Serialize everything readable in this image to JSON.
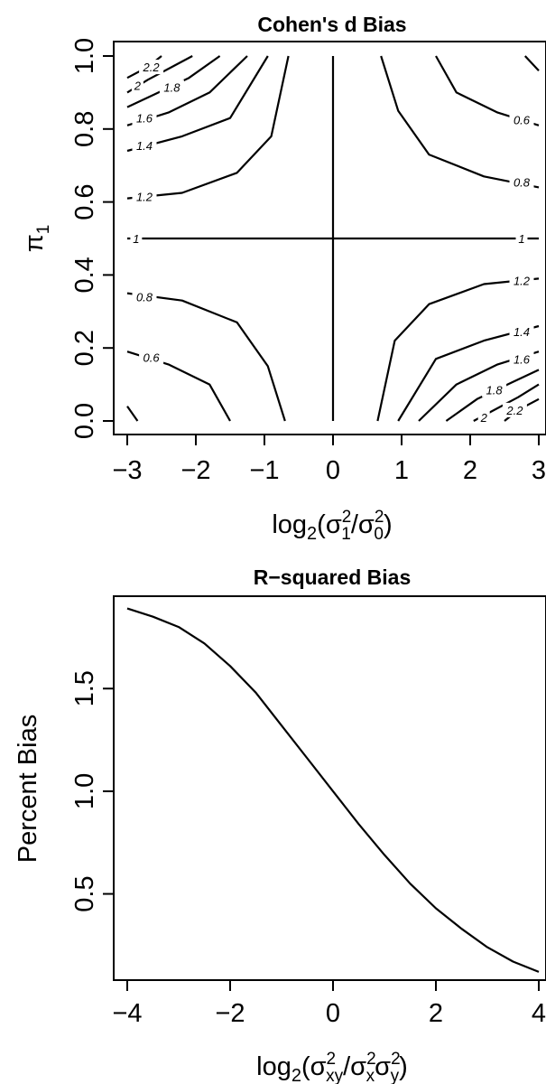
{
  "chart_data": [
    {
      "type": "contour",
      "title": "Cohen's d Bias",
      "ylabel": "π1",
      "xlabel": "log2(σ1²/σ0²)",
      "xlim": [
        -3,
        3
      ],
      "ylim": [
        0,
        1
      ],
      "xticks": [
        -3,
        -2,
        -1,
        0,
        1,
        2,
        3
      ],
      "yticks": [
        0.0,
        0.2,
        0.4,
        0.6,
        0.8,
        1.0
      ],
      "tick_labels_x": [
        "−3",
        "−2",
        "−1",
        "0",
        "1",
        "2",
        "3"
      ],
      "tick_labels_y": [
        "0.0",
        "0.2",
        "0.4",
        "0.6",
        "0.8",
        "1.0"
      ],
      "grid": false,
      "levels": [
        {
          "level": 2.2,
          "label": "2.2",
          "branches": [
            [
              [
                -3.0,
                0.94
              ],
              [
                -2.7,
                0.97
              ],
              [
                -2.5,
                1.0
              ]
            ],
            [
              [
                2.5,
                0.0
              ],
              [
                2.7,
                0.03
              ],
              [
                3.0,
                0.06
              ]
            ]
          ],
          "label_pos": [
            [
              -2.65,
              0.97
            ],
            [
              2.65,
              0.03
            ]
          ]
        },
        {
          "level": 2.0,
          "label": "2",
          "branches": [
            [
              [
                -3.0,
                0.9
              ],
              [
                -2.7,
                0.935
              ],
              [
                -2.3,
                0.975
              ],
              [
                -2.05,
                1.0
              ]
            ],
            [
              [
                2.05,
                0.0
              ],
              [
                2.3,
                0.025
              ],
              [
                2.7,
                0.065
              ],
              [
                3.0,
                0.1
              ]
            ]
          ],
          "label_pos": [
            [
              -2.85,
              0.92
            ],
            [
              2.2,
              0.01
            ]
          ]
        },
        {
          "level": 1.8,
          "label": "1.8",
          "branches": [
            [
              [
                -3.0,
                0.86
              ],
              [
                -2.6,
                0.895
              ],
              [
                -2.1,
                0.94
              ],
              [
                -1.65,
                1.0
              ]
            ],
            [
              [
                1.65,
                0.0
              ],
              [
                2.1,
                0.06
              ],
              [
                2.6,
                0.105
              ],
              [
                3.0,
                0.14
              ]
            ]
          ],
          "label_pos": [
            [
              -2.35,
              0.915
            ],
            [
              2.35,
              0.085
            ]
          ]
        },
        {
          "level": 1.6,
          "label": "1.6",
          "branches": [
            [
              [
                -3.0,
                0.81
              ],
              [
                -2.4,
                0.845
              ],
              [
                -1.8,
                0.9
              ],
              [
                -1.25,
                1.0
              ]
            ],
            [
              [
                1.25,
                0.0
              ],
              [
                1.8,
                0.1
              ],
              [
                2.4,
                0.155
              ],
              [
                3.0,
                0.19
              ]
            ]
          ],
          "label_pos": [
            [
              -2.75,
              0.83
            ],
            [
              2.75,
              0.17
            ]
          ]
        },
        {
          "level": 1.4,
          "label": "1.4",
          "branches": [
            [
              [
                -3.0,
                0.74
              ],
              [
                -2.2,
                0.78
              ],
              [
                -1.5,
                0.83
              ],
              [
                -0.95,
                1.0
              ]
            ],
            [
              [
                0.95,
                0.0
              ],
              [
                1.5,
                0.17
              ],
              [
                2.2,
                0.22
              ],
              [
                3.0,
                0.26
              ]
            ]
          ],
          "label_pos": [
            [
              -2.75,
              0.755
            ],
            [
              2.75,
              0.245
            ]
          ]
        },
        {
          "level": 1.2,
          "label": "1.2",
          "branches": [
            [
              [
                -3.0,
                0.61
              ],
              [
                -2.2,
                0.625
              ],
              [
                -1.4,
                0.68
              ],
              [
                -0.9,
                0.78
              ],
              [
                -0.65,
                1.0
              ]
            ],
            [
              [
                0.65,
                0.0
              ],
              [
                0.9,
                0.22
              ],
              [
                1.4,
                0.32
              ],
              [
                2.2,
                0.375
              ],
              [
                3.0,
                0.39
              ]
            ]
          ],
          "label_pos": [
            [
              -2.75,
              0.615
            ],
            [
              2.75,
              0.385
            ]
          ]
        },
        {
          "level": 1.0,
          "label": "1",
          "branches": [
            [
              [
                -3.0,
                0.5
              ],
              [
                3.0,
                0.5
              ]
            ],
            [
              [
                0.0,
                0.0
              ],
              [
                0.0,
                1.0
              ]
            ]
          ],
          "label_pos": [
            [
              -2.87,
              0.5
            ],
            [
              2.75,
              0.5
            ]
          ]
        },
        {
          "level": 0.8,
          "label": "0.8",
          "branches": [
            [
              [
                -3.0,
                0.35
              ],
              [
                -2.2,
                0.33
              ],
              [
                -1.4,
                0.27
              ],
              [
                -0.95,
                0.15
              ],
              [
                -0.7,
                0.0
              ]
            ],
            [
              [
                0.7,
                1.0
              ],
              [
                0.95,
                0.85
              ],
              [
                1.4,
                0.73
              ],
              [
                2.2,
                0.67
              ],
              [
                3.0,
                0.64
              ]
            ]
          ],
          "label_pos": [
            [
              -2.75,
              0.34
            ],
            [
              2.75,
              0.655
            ]
          ]
        },
        {
          "level": 0.6,
          "label": "0.6",
          "branches": [
            [
              [
                -3.0,
                0.19
              ],
              [
                -2.4,
                0.155
              ],
              [
                -1.8,
                0.1
              ],
              [
                -1.5,
                0.0
              ]
            ],
            [
              [
                1.5,
                1.0
              ],
              [
                1.8,
                0.9
              ],
              [
                2.4,
                0.845
              ],
              [
                3.0,
                0.81
              ]
            ]
          ],
          "label_pos": [
            [
              -2.65,
              0.175
            ],
            [
              2.75,
              0.825
            ]
          ]
        },
        {
          "level": 0.4,
          "label": "",
          "branches": [
            [
              [
                -3.0,
                0.04
              ],
              [
                -2.85,
                0.0
              ]
            ],
            [
              [
                2.8,
                1.0
              ],
              [
                3.0,
                0.96
              ]
            ]
          ],
          "label_pos": []
        }
      ]
    },
    {
      "type": "line",
      "title": "R−squared Bias",
      "ylabel": "Percent Bias",
      "xlabel": "log2(σxy²/σx²σy²)",
      "xlim": [
        -4,
        4
      ],
      "ylim": [
        0.08,
        1.95
      ],
      "xticks": [
        -4,
        -2,
        0,
        2,
        4
      ],
      "yticks": [
        0.5,
        1.0,
        1.5
      ],
      "tick_labels_x": [
        "−4",
        "−2",
        "0",
        "2",
        "4"
      ],
      "tick_labels_y": [
        "0.5",
        "1.0",
        "1.5"
      ],
      "grid": false,
      "series": [
        {
          "x": [
            -4,
            -3.5,
            -3,
            -2.5,
            -2,
            -1.5,
            -1,
            -0.5,
            0,
            0.5,
            1,
            1.5,
            2,
            2.5,
            3,
            3.5,
            4
          ],
          "y": [
            1.89,
            1.85,
            1.8,
            1.72,
            1.61,
            1.48,
            1.32,
            1.16,
            1.0,
            0.84,
            0.69,
            0.55,
            0.43,
            0.33,
            0.24,
            0.17,
            0.12
          ]
        }
      ]
    }
  ]
}
